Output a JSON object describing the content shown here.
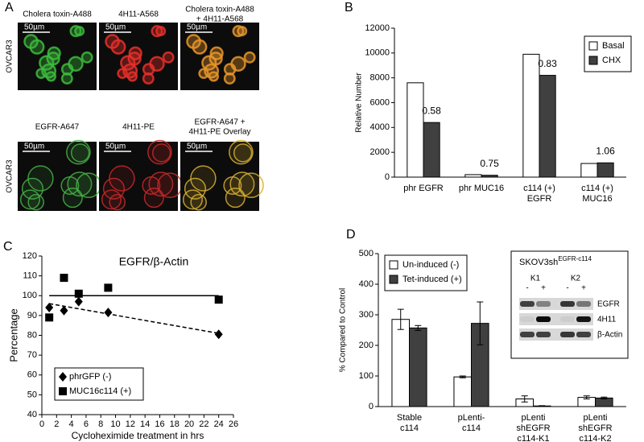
{
  "panel_labels": [
    "A",
    "B",
    "C",
    "D"
  ],
  "micrographs": {
    "rows": [
      {
        "cell_line": "OVCAR3",
        "images": [
          {
            "label": [
              "Cholera toxin-A488"
            ],
            "scale_bar": "50µm",
            "color": "#3dbb3d"
          },
          {
            "label": [
              "4H11-A568"
            ],
            "scale_bar": "50µm",
            "color": "#e8302a"
          },
          {
            "label": [
              "Cholera toxin-A488",
              "+ 4H11-A568"
            ],
            "scale_bar": "50µm",
            "color": "#e8962a"
          }
        ]
      },
      {
        "cell_line": "OVCAR3",
        "images": [
          {
            "label": [
              "EGFR-A647"
            ],
            "scale_bar": "50µm",
            "color": "#46b046"
          },
          {
            "label": [
              "4H11-PE"
            ],
            "scale_bar": "50µm",
            "color": "#c8282a"
          },
          {
            "label": [
              "EGFR-A647 +",
              "4H11-PE Overlay"
            ],
            "scale_bar": "50µm",
            "color": "#d8b030"
          }
        ]
      }
    ]
  },
  "chart_data": [
    {
      "type": "bar",
      "y_label": "Relative Number",
      "categories": [
        [
          "phr EGFR"
        ],
        [
          "phr MUC16"
        ],
        [
          "c114 (+)",
          "EGFR"
        ],
        [
          "c114 (+)",
          "MUC16"
        ]
      ],
      "series": [
        {
          "name": "Basal",
          "color": "#ffffff",
          "values": [
            7600,
            200,
            9900,
            1100
          ]
        },
        {
          "name": "CHX",
          "color": "#404040",
          "values": [
            4400,
            150,
            8200,
            1150
          ]
        }
      ],
      "annotations": [
        "0.58",
        "0.75",
        "0.83",
        "1.06"
      ],
      "ylim": [
        0,
        12000
      ],
      "yticks": [
        0,
        2000,
        4000,
        6000,
        8000,
        10000,
        12000
      ],
      "legend": "upper right"
    },
    {
      "type": "scatter",
      "title": "EGFR/β-Actin",
      "x_label": "Cycloheximide treatment in hrs",
      "y_label": "Percentage",
      "series": [
        {
          "name": "phrGFP (-)",
          "marker": "diamond",
          "color": "#000000",
          "x": [
            1,
            3,
            5,
            9,
            24
          ],
          "values": [
            94,
            92.5,
            97,
            91.5,
            80.5
          ],
          "fit": {
            "x": [
              1,
              24
            ],
            "values": [
              96,
              81
            ],
            "dashed": true
          }
        },
        {
          "name": "MUC16c114 (+)",
          "marker": "square",
          "color": "#000000",
          "x": [
            1,
            3,
            5,
            9,
            24
          ],
          "values": [
            89,
            109,
            101,
            104,
            98
          ],
          "fit": {
            "x": [
              1,
              24
            ],
            "values": [
              100,
              100
            ],
            "dashed": false
          }
        }
      ],
      "xlim": [
        0,
        26
      ],
      "xticks": [
        0,
        2,
        4,
        6,
        8,
        10,
        12,
        14,
        16,
        18,
        20,
        22,
        24,
        26
      ],
      "ylim": [
        40,
        120
      ],
      "yticks": [
        40,
        50,
        60,
        70,
        80,
        90,
        100,
        110,
        120
      ],
      "legend": "lower left"
    },
    {
      "type": "bar",
      "y_label": "% Compared to Control",
      "categories": [
        [
          "Stable",
          "c114"
        ],
        [
          "pLenti-",
          "c114"
        ],
        [
          "pLenti",
          "shEGFR",
          "c114-K1"
        ],
        [
          "pLenti",
          "shEGFR",
          "c114-K2"
        ]
      ],
      "series": [
        {
          "name": "Un-induced (-)",
          "color": "#ffffff",
          "values": [
            285,
            97,
            25,
            30
          ],
          "errors": [
            33,
            3,
            10,
            5
          ]
        },
        {
          "name": "Tet-induced (+)",
          "color": "#404040",
          "values": [
            257,
            272,
            2,
            28
          ],
          "errors": [
            8,
            70,
            1,
            3
          ]
        }
      ],
      "ylim": [
        0,
        500
      ],
      "yticks": [
        0,
        100,
        200,
        300,
        400,
        500
      ],
      "legend": "upper left",
      "inset": {
        "title": "SKOV3sh",
        "title_superscript": "EGFR-c114",
        "groups": [
          "K1",
          "K2"
        ],
        "lanes": [
          "-",
          "+",
          "-",
          "+"
        ],
        "bands": [
          "EGFR",
          "4H11",
          "β-Actin"
        ]
      }
    }
  ]
}
